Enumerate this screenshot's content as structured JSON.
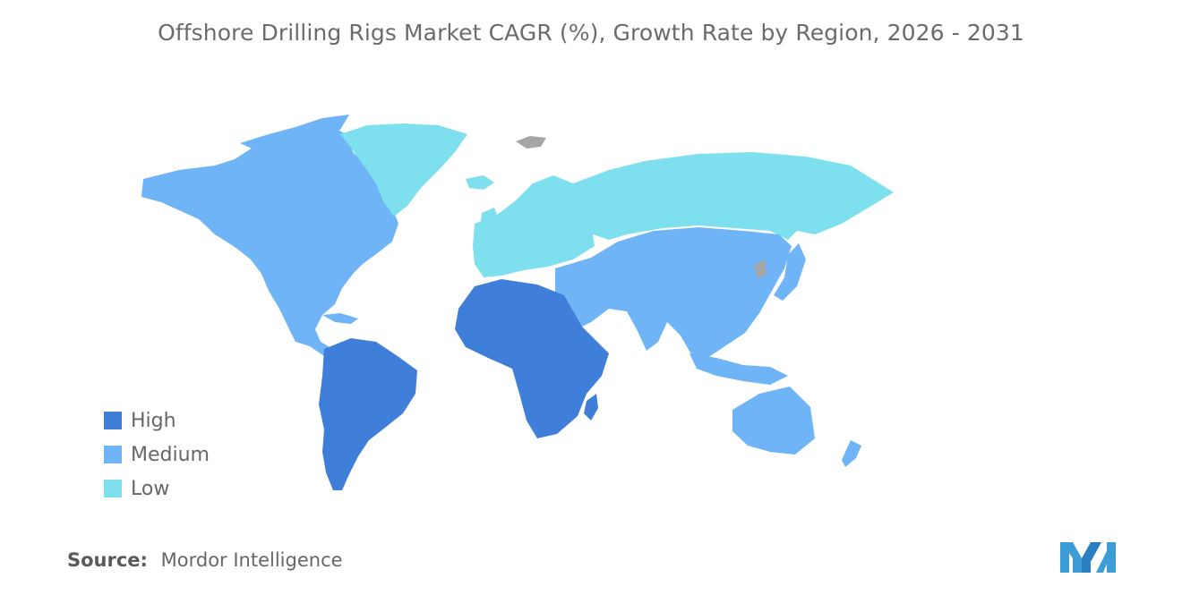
{
  "title": "Offshore Drilling Rigs Market CAGR (%), Growth Rate by Region, 2026 - 2031",
  "legend": [
    {
      "label": "High",
      "color": "#3f7fd9"
    },
    {
      "label": "Medium",
      "color": "#6fb4f6"
    },
    {
      "label": "Low",
      "color": "#7ee0ef"
    }
  ],
  "source": {
    "label": "Source:",
    "value": "Mordor Intelligence"
  },
  "colors": {
    "no_data": "#a6a6a6",
    "logo": "#3d9bd6"
  },
  "regions": [
    {
      "name": "North America",
      "level": "Medium"
    },
    {
      "name": "South America",
      "level": "High"
    },
    {
      "name": "Europe",
      "level": "Low"
    },
    {
      "name": "Africa",
      "level": "High"
    },
    {
      "name": "Middle East",
      "level": "Medium"
    },
    {
      "name": "Asia-Pacific",
      "level": "Medium"
    },
    {
      "name": "Russia",
      "level": "Low"
    },
    {
      "name": "Greenland",
      "level": "Low"
    }
  ]
}
